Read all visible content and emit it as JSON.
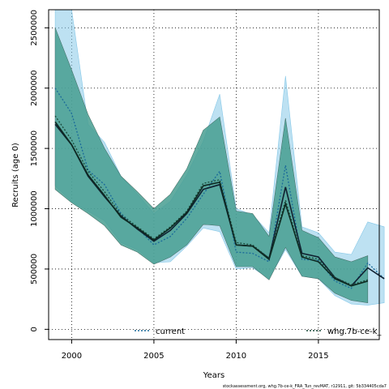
{
  "colors": {
    "current": "#1a6a9a",
    "current_band": "#86c8e8",
    "comparison": "#1a4a3a",
    "comparison_band_inner": "#3aa898",
    "comparison_band_outer": "#6a7a74",
    "gridline": "#000000"
  },
  "chart_data": {
    "type": "line",
    "title": "",
    "xlabel": "Years",
    "ylabel": "Recruits (age 0)",
    "xlim": [
      1998.6,
      2018.7
    ],
    "ylim": [
      -85000,
      2650000
    ],
    "x_ticks": [
      2000,
      2005,
      2010,
      2015
    ],
    "x_tick_labels": [
      "2000",
      "2005",
      "2010",
      "2015"
    ],
    "y_ticks": [
      0,
      500000,
      1000000,
      1500000,
      2000000,
      2500000
    ],
    "y_tick_labels": [
      "0",
      "500000",
      "1000000",
      "1500000",
      "2000000",
      "2500000"
    ],
    "grid": true,
    "legend_placement": "bottom",
    "series": [
      {
        "name": "current",
        "x": [
          1999,
          2000,
          2001,
          2002,
          2003,
          2004,
          2005,
          2006,
          2007,
          2008,
          2009,
          2010,
          2011,
          2012,
          2013,
          2014,
          2015,
          2016,
          2017,
          2018,
          2019
        ],
        "median": [
          2000000,
          1790000,
          1320000,
          1200000,
          960000,
          840000,
          700000,
          770000,
          920000,
          1120000,
          1310000,
          640000,
          630000,
          560000,
          1360000,
          580000,
          570000,
          400000,
          340000,
          550000,
          420000
        ],
        "mean": [
          1700000,
          1530000,
          1270000,
          1100000,
          940000,
          830000,
          730000,
          820000,
          960000,
          1160000,
          1200000,
          700000,
          690000,
          590000,
          1180000,
          630000,
          600000,
          430000,
          360000,
          510000,
          420000
        ],
        "lower": [
          1190000,
          1060000,
          980000,
          900000,
          720000,
          660000,
          550000,
          560000,
          690000,
          840000,
          810000,
          500000,
          510000,
          420000,
          660000,
          440000,
          420000,
          280000,
          210000,
          200000,
          220000
        ],
        "upper": [
          2800000,
          2700000,
          1700000,
          1550000,
          1270000,
          1120000,
          960000,
          1060000,
          1280000,
          1560000,
          1950000,
          1000000,
          950000,
          800000,
          2100000,
          850000,
          800000,
          640000,
          620000,
          890000,
          850000
        ]
      },
      {
        "name": "whg.7b-ce-k_",
        "x": [
          1999,
          2000,
          2001,
          2002,
          2003,
          2004,
          2005,
          2006,
          2007,
          2008,
          2009,
          2010,
          2011,
          2012,
          2013,
          2014,
          2015,
          2016,
          2017,
          2018
        ],
        "median": [
          1770000,
          1570000,
          1310000,
          1140000,
          950000,
          850000,
          750000,
          850000,
          980000,
          1210000,
          1240000,
          720000,
          700000,
          590000,
          1070000,
          610000,
          580000,
          430000,
          370000,
          410000
        ],
        "mean": [
          1720000,
          1530000,
          1280000,
          1110000,
          930000,
          840000,
          740000,
          840000,
          970000,
          1190000,
          1220000,
          700000,
          690000,
          580000,
          1040000,
          600000,
          560000,
          420000,
          360000,
          400000
        ],
        "lower": [
          1160000,
          1050000,
          960000,
          860000,
          700000,
          640000,
          540000,
          600000,
          700000,
          870000,
          860000,
          520000,
          520000,
          410000,
          680000,
          440000,
          420000,
          300000,
          240000,
          220000
        ],
        "upper": [
          2500000,
          2150000,
          1780000,
          1500000,
          1270000,
          1140000,
          1000000,
          1120000,
          1330000,
          1650000,
          1760000,
          980000,
          960000,
          770000,
          1750000,
          820000,
          760000,
          600000,
          560000,
          610000
        ]
      }
    ]
  },
  "footer": "stockassessment.org, whg.7b-ce-k_FRA_Tun_revMAT, r12911, git: 5b334405cda7"
}
